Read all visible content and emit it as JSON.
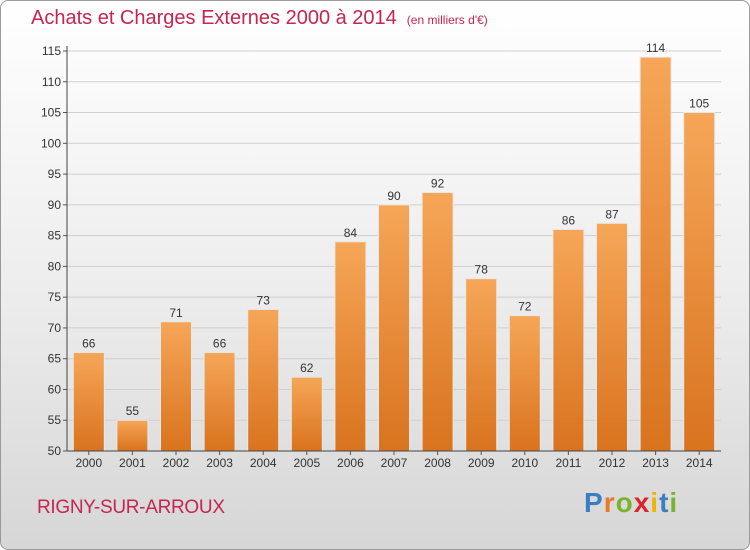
{
  "title": "Achats et Charges Externes 2000 à 2014",
  "unit_note": "(en milliers d'€)",
  "commune": "RIGNY-SUR-ARROUX",
  "logo": {
    "letters": [
      "P",
      "r",
      "o",
      "x",
      "i",
      "t",
      "i"
    ]
  },
  "colors": {
    "bar_top": "#f6a658",
    "bar_bottom": "#d9731e",
    "title": "#c7254e",
    "grid": "#cfcfcf"
  },
  "chart_data": {
    "type": "bar",
    "title": "Achats et Charges Externes 2000 à 2014",
    "subtitle": "(en milliers d'€)",
    "categories": [
      "2000",
      "2001",
      "2002",
      "2003",
      "2004",
      "2005",
      "2006",
      "2007",
      "2008",
      "2009",
      "2010",
      "2011",
      "2012",
      "2013",
      "2014"
    ],
    "values": [
      66,
      55,
      71,
      66,
      73,
      62,
      84,
      90,
      92,
      78,
      72,
      86,
      87,
      114,
      105
    ],
    "ylim": [
      50,
      115
    ],
    "yticks": [
      50,
      55,
      60,
      65,
      70,
      75,
      80,
      85,
      90,
      95,
      100,
      105,
      110,
      115
    ],
    "grid": true,
    "data_labels": true
  }
}
